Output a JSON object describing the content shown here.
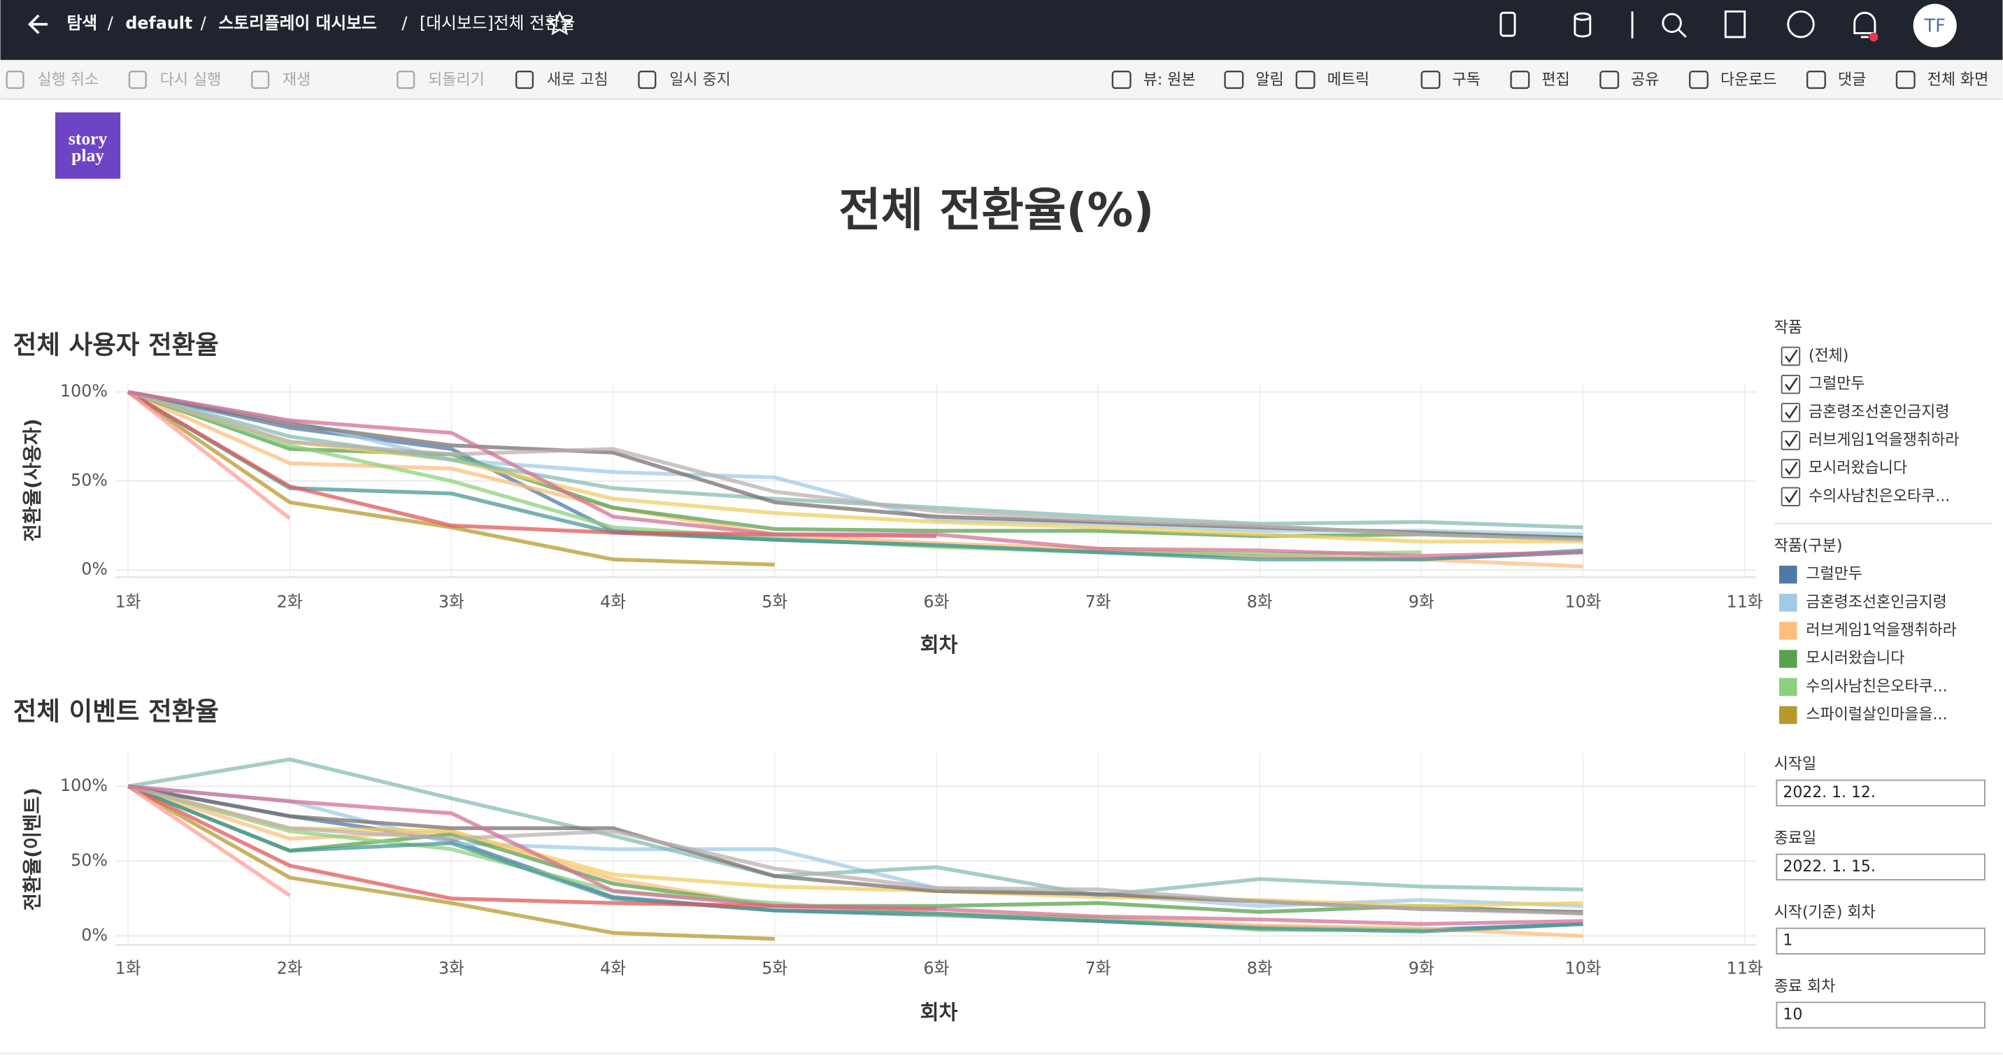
{
  "header": {
    "breadcrumb": [
      "탐색",
      "default",
      "스토리플레이 대시보드",
      "[대시보드]전체 전환율"
    ],
    "separator": "/",
    "avatar": "TF"
  },
  "toolbar": {
    "left": [
      "실행 취소",
      "다시 실행",
      "재생",
      "되돌리기",
      "새로 고침",
      "일시 중지"
    ],
    "right": [
      "뷰: 원본",
      "알림",
      "메트릭",
      "구독",
      "편집",
      "공유",
      "다운로드",
      "댓글",
      "전체 화면"
    ]
  },
  "logo": [
    "story",
    "play"
  ],
  "title": "전체 전환율(%)",
  "chart_data": [
    {
      "type": "line",
      "title": "전체 사용자 전환율",
      "xlabel": "회차",
      "ylabel": "전환율(사용자)",
      "categories": [
        "1화",
        "2화",
        "3화",
        "4화",
        "5화",
        "6화",
        "7화",
        "8화",
        "9화",
        "10화",
        "11화"
      ],
      "ylim": [
        -4,
        105
      ],
      "yticks": [
        {
          "value": 0,
          "label": "0%"
        },
        {
          "value": 50,
          "label": "50%"
        },
        {
          "value": 100,
          "label": "100%"
        }
      ],
      "grid": true,
      "series": [
        {
          "name": "그럴만두",
          "color": "#4e79a7",
          "values": [
            100,
            80,
            68,
            22,
            17,
            14,
            10,
            8,
            6,
            10,
            null
          ]
        },
        {
          "name": "금혼령조선혼인금지령",
          "color": "#a0cbe8",
          "values": [
            100,
            84,
            62,
            55,
            52,
            28,
            26,
            22,
            22,
            20,
            null
          ]
        },
        {
          "name": "러브게임1억을쟁취하라",
          "color": "#ffbe7d",
          "values": [
            100,
            60,
            57,
            35,
            20,
            15,
            12,
            8,
            6,
            2,
            null
          ]
        },
        {
          "name": "모시러왔습니다",
          "color": "#59a14f",
          "values": [
            100,
            68,
            65,
            35,
            23,
            22,
            22,
            19,
            20,
            18,
            null
          ]
        },
        {
          "name": "수의사남친은오타쿠...",
          "color": "#8cd17d",
          "values": [
            100,
            70,
            50,
            24,
            18,
            13,
            10,
            9,
            10,
            null,
            null
          ]
        },
        {
          "name": "스파이럴살인마을을...",
          "color": "#b6992d",
          "values": [
            100,
            38,
            24,
            6,
            3,
            null,
            null,
            null,
            null,
            null,
            null
          ]
        },
        {
          "color": "#f1ce63",
          "values": [
            100,
            72,
            62,
            40,
            32,
            27,
            24,
            20,
            16,
            16,
            null
          ]
        },
        {
          "color": "#499894",
          "values": [
            100,
            46,
            43,
            21,
            17,
            14,
            10,
            6,
            6,
            11,
            null
          ]
        },
        {
          "color": "#86bcb6",
          "values": [
            100,
            75,
            62,
            46,
            40,
            35,
            30,
            26,
            27,
            24,
            null
          ]
        },
        {
          "color": "#e15759",
          "values": [
            100,
            47,
            25,
            21,
            20,
            19,
            null,
            null,
            null,
            null,
            null
          ]
        },
        {
          "color": "#ff9d9a",
          "values": [
            100,
            29,
            null,
            null,
            null,
            null,
            null,
            null,
            null,
            null,
            null
          ]
        },
        {
          "color": "#79706e",
          "values": [
            100,
            82,
            70,
            66,
            38,
            30,
            27,
            24,
            21,
            18,
            null
          ]
        },
        {
          "color": "#bab0ac",
          "values": [
            100,
            72,
            65,
            68,
            44,
            33,
            28,
            25,
            20,
            17,
            null
          ]
        },
        {
          "color": "#d37295",
          "values": [
            100,
            84,
            77,
            30,
            20,
            20,
            12,
            11,
            8,
            10,
            null
          ]
        }
      ]
    },
    {
      "type": "line",
      "title": "전체 이벤트 전환율",
      "xlabel": "회차",
      "ylabel": "전환율(이벤트)",
      "categories": [
        "1화",
        "2화",
        "3화",
        "4화",
        "5화",
        "6화",
        "7화",
        "8화",
        "9화",
        "10화",
        "11화"
      ],
      "ylim": [
        -6,
        122
      ],
      "yticks": [
        {
          "value": 0,
          "label": "0%"
        },
        {
          "value": 50,
          "label": "50%"
        },
        {
          "value": 100,
          "label": "100%"
        }
      ],
      "grid": true,
      "series": [
        {
          "color": "#4e79a7",
          "values": [
            100,
            80,
            64,
            26,
            17,
            14,
            10,
            6,
            4,
            8,
            null
          ]
        },
        {
          "color": "#a0cbe8",
          "values": [
            100,
            90,
            62,
            58,
            58,
            32,
            28,
            20,
            24,
            20,
            null
          ]
        },
        {
          "color": "#ffbe7d",
          "values": [
            100,
            65,
            70,
            38,
            20,
            15,
            12,
            7,
            5,
            0,
            null
          ]
        },
        {
          "color": "#59a14f",
          "values": [
            100,
            57,
            68,
            35,
            20,
            20,
            22,
            16,
            20,
            15,
            null
          ]
        },
        {
          "color": "#8cd17d",
          "values": [
            100,
            70,
            58,
            30,
            22,
            14,
            12,
            4,
            4,
            null,
            null
          ]
        },
        {
          "color": "#b6992d",
          "values": [
            100,
            39,
            22,
            2,
            -2,
            null,
            null,
            null,
            null,
            null,
            null
          ]
        },
        {
          "color": "#f1ce63",
          "values": [
            100,
            72,
            70,
            41,
            33,
            30,
            26,
            24,
            20,
            22,
            null
          ]
        },
        {
          "color": "#499894",
          "values": [
            100,
            57,
            62,
            25,
            17,
            15,
            10,
            5,
            3,
            8,
            null
          ]
        },
        {
          "color": "#86bcb6",
          "values": [
            100,
            118,
            92,
            67,
            40,
            46,
            27,
            38,
            33,
            31,
            null
          ]
        },
        {
          "color": "#e15759",
          "values": [
            100,
            47,
            25,
            22,
            20,
            18,
            null,
            null,
            null,
            null,
            null
          ]
        },
        {
          "color": "#ff9d9a",
          "values": [
            100,
            27,
            null,
            null,
            null,
            null,
            null,
            null,
            null,
            null,
            null
          ]
        },
        {
          "color": "#79706e",
          "values": [
            100,
            80,
            72,
            72,
            40,
            30,
            28,
            23,
            18,
            16,
            null
          ]
        },
        {
          "color": "#bab0ac",
          "values": [
            100,
            72,
            65,
            70,
            45,
            32,
            31,
            23,
            18,
            15,
            null
          ]
        },
        {
          "color": "#d37295",
          "values": [
            100,
            90,
            82,
            30,
            20,
            18,
            13,
            11,
            8,
            10,
            null
          ]
        }
      ]
    }
  ],
  "filters": {
    "works": {
      "title": "작품",
      "items": [
        "(전체)",
        "그럴만두",
        "금혼령조선혼인금지령",
        "러브게임1억을쟁취하라",
        "모시러왔습니다",
        "수의사남친은오타쿠..."
      ]
    },
    "legend_title": "작품(구분)",
    "fields": [
      {
        "label": "시작일",
        "value": "2022. 1. 12."
      },
      {
        "label": "종료일",
        "value": "2022. 1. 15."
      },
      {
        "label": "시작(기준) 회차",
        "value": "1"
      },
      {
        "label": "종료 회차",
        "value": "10"
      }
    ]
  }
}
